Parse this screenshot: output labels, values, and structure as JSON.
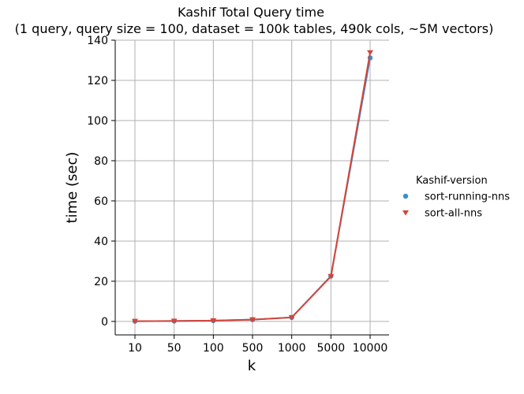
{
  "chart_data": {
    "type": "line",
    "title": "Kashif Total Query time",
    "subtitle": "(1 query, query size = 100, dataset = 100k tables, 490k cols, ~5M vectors)",
    "xlabel": "k",
    "ylabel": "time (sec)",
    "categories": [
      "10",
      "50",
      "100",
      "500",
      "1000",
      "5000",
      "10000"
    ],
    "ylim": [
      -6.7,
      140
    ],
    "yticks": [
      "0",
      "20",
      "40",
      "60",
      "80",
      "100",
      "120",
      "140"
    ],
    "grid": true,
    "legend": {
      "title": "Kashif-version",
      "placement": "right"
    },
    "series": [
      {
        "name": "sort-running-nns",
        "color": "#3A8FC7",
        "marker": "circle",
        "values": [
          0.1,
          0.2,
          0.4,
          0.9,
          2.0,
          22.6,
          131.2
        ]
      },
      {
        "name": "sort-all-nns",
        "color": "#D6443A",
        "marker": "triangle-down",
        "values": [
          0.1,
          0.2,
          0.4,
          0.9,
          2.0,
          22.4,
          133.8
        ]
      }
    ]
  }
}
